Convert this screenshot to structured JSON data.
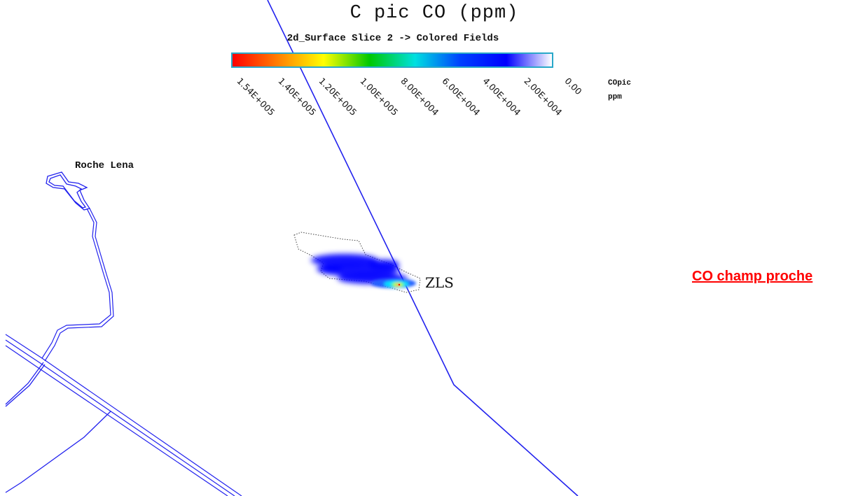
{
  "title": "C pic CO (ppm)",
  "subtitle": "2d_Surface Slice 2 -> Colored Fields",
  "legend": {
    "ticks": [
      "1.54E+005",
      "1.40E+005",
      "1.20E+005",
      "1.00E+005",
      "8.00E+004",
      "6.00E+004",
      "4.00E+004",
      "2.00E+004",
      "0.00"
    ],
    "variable": "COpic",
    "unit": "ppm",
    "colors": [
      "#ff0000",
      "#ff8000",
      "#ffff00",
      "#00c800",
      "#00e0e0",
      "#0040ff",
      "#0000ff",
      "#ffffff"
    ]
  },
  "map": {
    "place_label": "Roche Lena",
    "source_label": "ZLS",
    "line_color": "#2222ee",
    "plume_colors": [
      "#0000ff",
      "#00e0ff",
      "#ffff00",
      "#ff0000"
    ]
  },
  "caption": "CO  champ proche"
}
